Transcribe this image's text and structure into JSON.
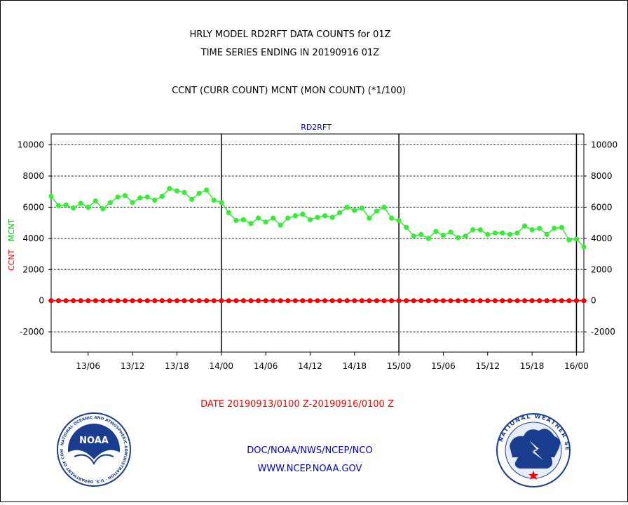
{
  "header": {
    "line1": "HRLY MODEL RD2RFT DATA COUNTS for 01Z",
    "line2": "TIME SERIES ENDING IN 20190916 01Z",
    "line3": "CCNT (CURR COUNT) MCNT (MON COUNT) (*1/100)"
  },
  "footer": {
    "date_range": "DATE 20190913/0100 Z-20190916/0100 Z",
    "org": "DOC/NOAA/NWS/NCEP/NCO",
    "url": "WWW.NCEP.NOAA.GOV"
  },
  "logos": {
    "noaa_text": "NOAA",
    "nws_ring_text": "NATIONAL WEATHER SERVICE",
    "noaa_ring_text": "NATIONAL OCEANIC AND ATMOSPHERIC ADMINISTRATION · U.S. DEPARTMENT OF COMMERCE"
  },
  "colors": {
    "ccnt": "#ff0000",
    "mcnt": "#33ee33",
    "title_blue": "#0000cc",
    "date_red": "#ff0000"
  },
  "chart_data": {
    "type": "line",
    "title": "RD2RFT",
    "ylabel_ccnt": "CCNT",
    "ylabel_mcnt": "MCNT",
    "ylim": [
      -3300,
      10700
    ],
    "yticks": [
      -2000,
      0,
      2000,
      4000,
      6000,
      8000,
      10000
    ],
    "ytick_labels": [
      "-2000",
      "0",
      "2000",
      "4000",
      "6000",
      "8000",
      "10000"
    ],
    "xlim": [
      0,
      72
    ],
    "xticks": [
      5,
      11,
      17,
      23,
      29,
      35,
      41,
      47,
      53,
      59,
      65,
      71
    ],
    "xtick_labels": [
      "13/06",
      "13/12",
      "13/18",
      "14/00",
      "14/06",
      "14/12",
      "14/18",
      "15/00",
      "15/06",
      "15/12",
      "15/18",
      "16/00"
    ],
    "day_boundaries": [
      23,
      47,
      71
    ],
    "grid": true,
    "series": [
      {
        "name": "CCNT",
        "color": "#ff0000",
        "x": [
          0,
          1,
          2,
          3,
          4,
          5,
          6,
          7,
          8,
          9,
          10,
          11,
          12,
          13,
          14,
          15,
          16,
          17,
          18,
          19,
          20,
          21,
          22,
          23,
          24,
          25,
          26,
          27,
          28,
          29,
          30,
          31,
          32,
          33,
          34,
          35,
          36,
          37,
          38,
          39,
          40,
          41,
          42,
          43,
          44,
          45,
          46,
          47,
          48,
          49,
          50,
          51,
          52,
          53,
          54,
          55,
          56,
          57,
          58,
          59,
          60,
          61,
          62,
          63,
          64,
          65,
          66,
          67,
          68,
          69,
          70,
          71,
          72
        ],
        "values": [
          0,
          0,
          0,
          0,
          0,
          0,
          0,
          0,
          0,
          0,
          0,
          0,
          0,
          0,
          0,
          0,
          0,
          0,
          0,
          0,
          0,
          0,
          0,
          0,
          0,
          0,
          0,
          0,
          0,
          0,
          0,
          0,
          0,
          0,
          0,
          0,
          0,
          0,
          0,
          0,
          0,
          0,
          0,
          0,
          0,
          0,
          0,
          0,
          0,
          0,
          0,
          0,
          0,
          0,
          0,
          0,
          0,
          0,
          0,
          0,
          0,
          0,
          0,
          0,
          0,
          0,
          0,
          0,
          0,
          0,
          0,
          0,
          0
        ]
      },
      {
        "name": "MCNT",
        "color": "#33ee33",
        "x": [
          0,
          1,
          2,
          3,
          4,
          5,
          6,
          7,
          8,
          9,
          10,
          11,
          12,
          13,
          14,
          15,
          16,
          17,
          18,
          19,
          20,
          21,
          22,
          23,
          24,
          25,
          26,
          27,
          28,
          29,
          30,
          31,
          32,
          33,
          34,
          35,
          36,
          37,
          38,
          39,
          40,
          41,
          42,
          43,
          44,
          45,
          46,
          47,
          48,
          49,
          50,
          51,
          52,
          53,
          54,
          55,
          56,
          57,
          58,
          59,
          60,
          61,
          62,
          63,
          64,
          65,
          66,
          67,
          68,
          69,
          70,
          71,
          72
        ],
        "values": [
          6700,
          6100,
          6150,
          5950,
          6250,
          6000,
          6400,
          5900,
          6300,
          6650,
          6750,
          6300,
          6600,
          6650,
          6450,
          6700,
          7200,
          7050,
          6950,
          6500,
          6900,
          7100,
          6450,
          6300,
          5650,
          5150,
          5200,
          4950,
          5300,
          5050,
          5300,
          4850,
          5300,
          5450,
          5550,
          5200,
          5350,
          5450,
          5350,
          5650,
          6000,
          5800,
          5950,
          5300,
          5750,
          6000,
          5300,
          5150,
          4700,
          4150,
          4250,
          4000,
          4450,
          4200,
          4400,
          4050,
          4150,
          4550,
          4550,
          4250,
          4350,
          4350,
          4250,
          4350,
          4800,
          4550,
          4650,
          4250,
          4650,
          4700,
          3900,
          3950,
          3450
        ]
      }
    ]
  }
}
